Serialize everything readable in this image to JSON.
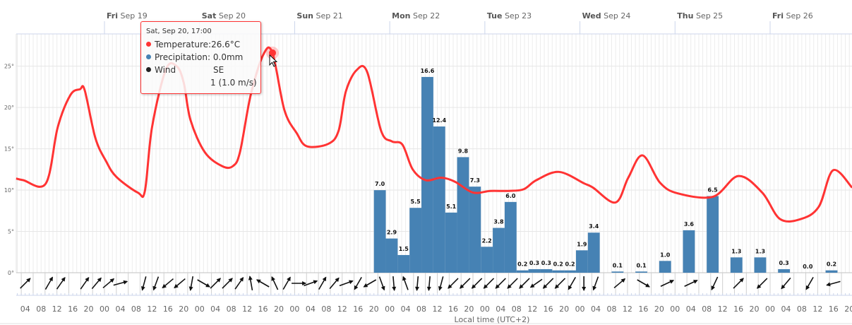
{
  "chart_data": {
    "type": "line+bar",
    "title": "",
    "xlabel": "Local time (UTC+2)",
    "x_units": "hours from Thu Sep 18 00:00",
    "xlim": [
      1.7,
      212.7
    ],
    "days": [
      {
        "dow": "Fri",
        "date": "Sep 19",
        "h": 24
      },
      {
        "dow": "Sat",
        "date": "Sep 20",
        "h": 48
      },
      {
        "dow": "Sun",
        "date": "Sep 21",
        "h": 72
      },
      {
        "dow": "Mon",
        "date": "Sep 22",
        "h": 96
      },
      {
        "dow": "Tue",
        "date": "Sep 23",
        "h": 120
      },
      {
        "dow": "Wed",
        "date": "Sep 24",
        "h": 144
      },
      {
        "dow": "Thu",
        "date": "Sep 25",
        "h": 168
      },
      {
        "dow": "Fri",
        "date": "Sep 26",
        "h": 192
      }
    ],
    "hour_label_start_h": 4,
    "hour_label_step_h": 4,
    "hour_labels": [
      "04",
      "08",
      "12",
      "16",
      "20",
      "00",
      "04",
      "08",
      "12",
      "16",
      "20",
      "00",
      "04",
      "08",
      "12",
      "16",
      "20",
      "00",
      "04",
      "08",
      "12",
      "16",
      "20",
      "00",
      "04",
      "08",
      "12",
      "16",
      "20",
      "00",
      "04",
      "08",
      "12",
      "16",
      "20",
      "00",
      "04",
      "08",
      "12",
      "16",
      "20",
      "00",
      "04",
      "08",
      "12",
      "16",
      "20",
      "00",
      "04",
      "08",
      "12",
      "16",
      "20"
    ],
    "y_ticks": [
      {
        "v": 0,
        "label": "0°"
      },
      {
        "v": 5,
        "label": "5°"
      },
      {
        "v": 10,
        "label": "10°"
      },
      {
        "v": 15,
        "label": "15°"
      },
      {
        "v": 20,
        "label": "20°"
      },
      {
        "v": 25,
        "label": "25°"
      }
    ],
    "ylim": [
      0,
      28.9
    ],
    "temperature": {
      "name": "Temperature",
      "unit": "°C",
      "color": "#ff3333",
      "points": [
        [
          1.7,
          11.4
        ],
        [
          3.5,
          11.2
        ],
        [
          9.2,
          10.8
        ],
        [
          12.2,
          17.6
        ],
        [
          15.4,
          21.5
        ],
        [
          17.8,
          22.2
        ],
        [
          19.0,
          22.1
        ],
        [
          21.7,
          16.3
        ],
        [
          24.4,
          13.5
        ],
        [
          27.0,
          11.6
        ],
        [
          32.4,
          9.7
        ],
        [
          34.2,
          9.9
        ],
        [
          36.0,
          17.6
        ],
        [
          39.5,
          24.6
        ],
        [
          42.2,
          25.0
        ],
        [
          44.0,
          23.0
        ],
        [
          45.7,
          18.5
        ],
        [
          49.3,
          14.6
        ],
        [
          53.7,
          12.9
        ],
        [
          56.4,
          12.9
        ],
        [
          58.2,
          14.6
        ],
        [
          60.9,
          21.5
        ],
        [
          64.1,
          26.4
        ],
        [
          66.4,
          26.6
        ],
        [
          69.4,
          19.7
        ],
        [
          72.5,
          16.9
        ],
        [
          75.1,
          15.3
        ],
        [
          80.5,
          15.6
        ],
        [
          83.1,
          17.2
        ],
        [
          84.9,
          21.9
        ],
        [
          87.6,
          24.5
        ],
        [
          90.3,
          24.3
        ],
        [
          93.8,
          17.2
        ],
        [
          96.5,
          15.9
        ],
        [
          99.2,
          15.5
        ],
        [
          101.8,
          12.5
        ],
        [
          105.1,
          11.2
        ],
        [
          109.0,
          11.5
        ],
        [
          112.5,
          11.0
        ],
        [
          117.0,
          9.7
        ],
        [
          121.4,
          9.9
        ],
        [
          125.9,
          9.9
        ],
        [
          129.8,
          10.1
        ],
        [
          133.0,
          11.2
        ],
        [
          138.7,
          12.2
        ],
        [
          145.1,
          10.8
        ],
        [
          147.3,
          10.3
        ],
        [
          153.0,
          8.5
        ],
        [
          156.2,
          11.5
        ],
        [
          159.8,
          14.2
        ],
        [
          164.2,
          10.9
        ],
        [
          168.7,
          9.6
        ],
        [
          177.6,
          9.2
        ],
        [
          184.0,
          11.7
        ],
        [
          190.0,
          9.7
        ],
        [
          194.5,
          6.5
        ],
        [
          199.8,
          6.5
        ],
        [
          204.3,
          8.0
        ],
        [
          207.9,
          12.4
        ],
        [
          212.7,
          10.3
        ]
      ]
    },
    "precipitation": {
      "name": "Precipitation",
      "unit": "mm",
      "color": "#4682b4",
      "ylim": [
        0,
        20.25
      ],
      "bar_hours": 3,
      "bars": [
        [
          92,
          7.0
        ],
        [
          95,
          2.9
        ],
        [
          98,
          1.5
        ],
        [
          101,
          5.5
        ],
        [
          104,
          16.6
        ],
        [
          107,
          12.4
        ],
        [
          110,
          5.1
        ],
        [
          113,
          9.8
        ],
        [
          116,
          7.3
        ],
        [
          119,
          2.2
        ],
        [
          122,
          3.8
        ],
        [
          125,
          6.0
        ],
        [
          128,
          0.2
        ],
        [
          131,
          0.3
        ],
        [
          134,
          0.3
        ],
        [
          137,
          0.2
        ],
        [
          140,
          0.2
        ],
        [
          143,
          1.9
        ],
        [
          146,
          3.4
        ],
        [
          152,
          0.1
        ],
        [
          158,
          0.1
        ],
        [
          164,
          1.0
        ],
        [
          170,
          3.6
        ],
        [
          176,
          6.5
        ],
        [
          182,
          1.3
        ],
        [
          188,
          1.3
        ],
        [
          194,
          0.3
        ],
        [
          200,
          0.0
        ],
        [
          206,
          0.2
        ]
      ]
    },
    "wind": {
      "name": "Wind",
      "dirs": [
        [
          4,
          45
        ],
        [
          10,
          30
        ],
        [
          13,
          35
        ],
        [
          19,
          35
        ],
        [
          22,
          40
        ],
        [
          25,
          50
        ],
        [
          28,
          75
        ],
        [
          34,
          195
        ],
        [
          37,
          200
        ],
        [
          40,
          230
        ],
        [
          43,
          230
        ],
        [
          46,
          190
        ],
        [
          49,
          120
        ],
        [
          52,
          45
        ],
        [
          55,
          45
        ],
        [
          58,
          35
        ],
        [
          61,
          350
        ],
        [
          64,
          300
        ],
        [
          67,
          335
        ],
        [
          70,
          30
        ],
        [
          73,
          90
        ],
        [
          76,
          70
        ],
        [
          79,
          30
        ],
        [
          82,
          40
        ],
        [
          85,
          70
        ],
        [
          88,
          210
        ],
        [
          91,
          240
        ],
        [
          94,
          160
        ],
        [
          97,
          175
        ],
        [
          100,
          340
        ],
        [
          103,
          185
        ],
        [
          106,
          185
        ],
        [
          109,
          195
        ],
        [
          112,
          225
        ],
        [
          115,
          225
        ],
        [
          118,
          225
        ],
        [
          121,
          225
        ],
        [
          124,
          225
        ],
        [
          127,
          225
        ],
        [
          130,
          225
        ],
        [
          133,
          235
        ],
        [
          136,
          225
        ],
        [
          139,
          225
        ],
        [
          142,
          210
        ],
        [
          145,
          180
        ],
        [
          148,
          200
        ],
        [
          154,
          50
        ],
        [
          160,
          120
        ],
        [
          166,
          65
        ],
        [
          172,
          65
        ],
        [
          178,
          205
        ],
        [
          184,
          45
        ],
        [
          190,
          225
        ],
        [
          196,
          220
        ],
        [
          202,
          210
        ],
        [
          208,
          255
        ]
      ]
    },
    "tooltip": {
      "h": 66.4,
      "date": "Sat, Sep 20, 17:00",
      "temperature_label": "Temperature:",
      "temperature_value": "26.6°C",
      "precipitation_label": "Precipitation:",
      "precipitation_value": "0.0mm",
      "wind_label": "Wind",
      "wind_dir": "SE",
      "wind_value": "1 (1.0 m/s)"
    }
  }
}
